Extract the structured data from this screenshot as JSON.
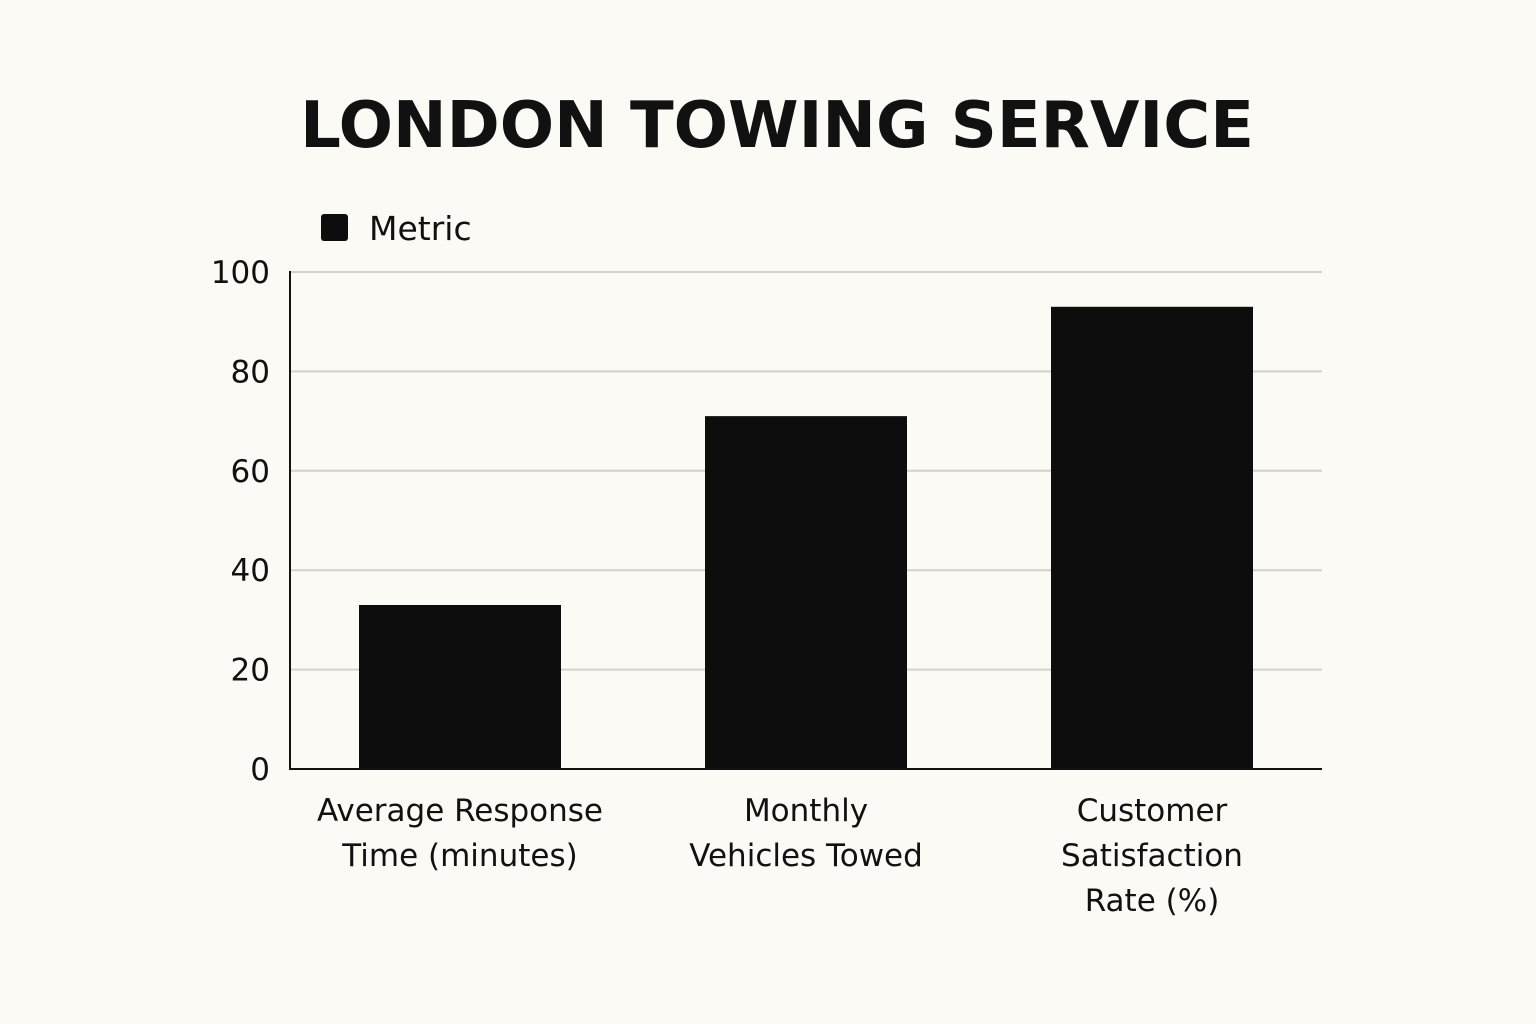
{
  "chart_data": {
    "type": "bar",
    "title": "LONDON TOWING SERVICE",
    "categories": [
      [
        "Average Response",
        "Time (minutes)"
      ],
      [
        "Monthly",
        "Vehicles Towed"
      ],
      [
        "Customer",
        "Satisfaction",
        "Rate (%)"
      ]
    ],
    "series": [
      {
        "name": "Metric",
        "values": [
          33,
          71,
          93
        ],
        "color": "#0d0d0d"
      }
    ],
    "xlabel": "",
    "ylabel": "",
    "ylim": [
      0,
      100
    ],
    "yticks": [
      "0",
      "20",
      "40",
      "60",
      "80",
      "100"
    ],
    "grid": true,
    "legend": "top-left"
  }
}
